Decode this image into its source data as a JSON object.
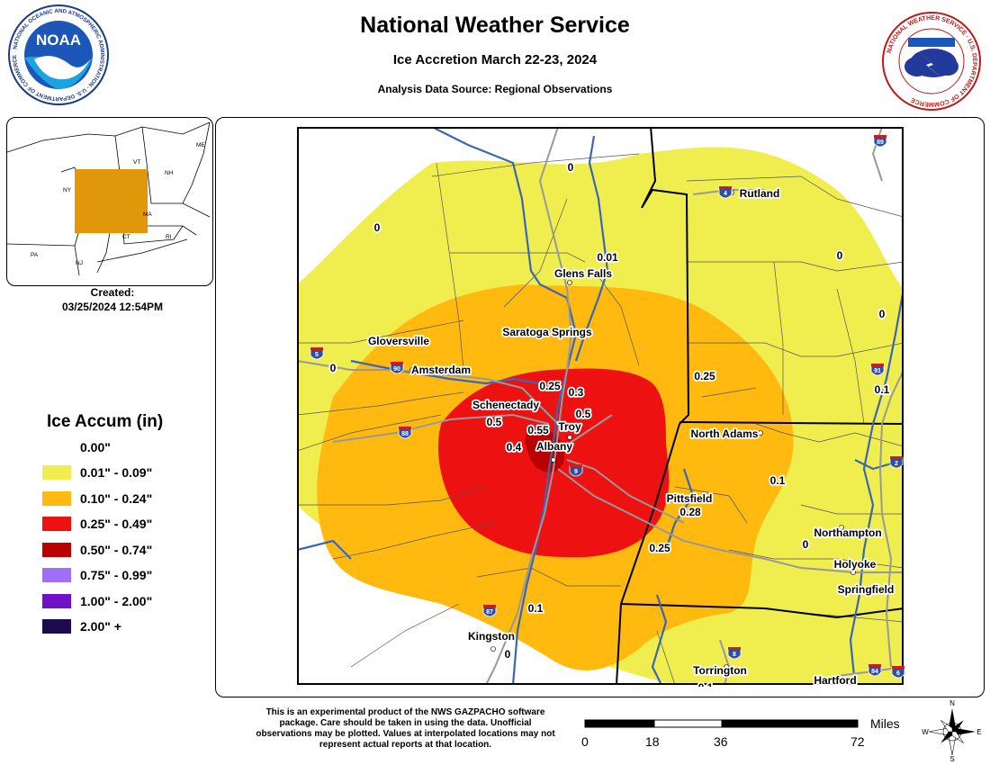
{
  "header": {
    "title": "National Weather Service",
    "subtitle": "Ice Accretion March 22-23, 2024",
    "source": "Analysis Data Source: Regional Observations"
  },
  "logos": {
    "noaa": {
      "text": "NOAA",
      "ring": "NATIONAL OCEANIC AND ATMOSPHERIC ADMINISTRATION · U.S. DEPARTMENT OF COMMERCE"
    },
    "nws": {
      "ring": "NATIONAL WEATHER SERVICE · U.S. DEPARTMENT OF COMMERCE"
    }
  },
  "inset": {
    "state_labels": [
      "ME",
      "VT",
      "NH",
      "NY",
      "MA",
      "CT",
      "RI",
      "PA",
      "NJ"
    ],
    "highlight_color": "#E0980A"
  },
  "created": {
    "label": "Created:",
    "timestamp": "03/25/2024 12:54PM"
  },
  "legend": {
    "title": "Ice Accum (in)",
    "items": [
      {
        "label": "0.00\"",
        "color": "#FFFFFF"
      },
      {
        "label": "0.01\" - 0.09\"",
        "color": "#F0EE4E"
      },
      {
        "label": "0.10\" - 0.24\"",
        "color": "#FFB90F"
      },
      {
        "label": "0.25\" - 0.49\"",
        "color": "#EE1111"
      },
      {
        "label": "0.50\" - 0.74\"",
        "color": "#BB0000"
      },
      {
        "label": "0.75\" - 0.99\"",
        "color": "#9F6FF5"
      },
      {
        "label": "1.00\" - 2.00\"",
        "color": "#7010C8"
      },
      {
        "label": "2.00\" +",
        "color": "#1E0A50"
      }
    ]
  },
  "map": {
    "cities": [
      {
        "name": "Glens Falls"
      },
      {
        "name": "Rutland"
      },
      {
        "name": "Saratoga Springs"
      },
      {
        "name": "Gloversville"
      },
      {
        "name": "Amsterdam"
      },
      {
        "name": "Schenectady"
      },
      {
        "name": "Troy"
      },
      {
        "name": "Albany"
      },
      {
        "name": "North Adams"
      },
      {
        "name": "Pittsfield"
      },
      {
        "name": "Northampton"
      },
      {
        "name": "Holyoke"
      },
      {
        "name": "Springfield"
      },
      {
        "name": "Kingston"
      },
      {
        "name": "Torrington"
      },
      {
        "name": "Hartford"
      }
    ],
    "observations": [
      "0",
      "0",
      "0.01",
      "0",
      "0",
      "0",
      "0.25",
      "0.25",
      "0.3",
      "0.5",
      "0.5",
      "0.55",
      "0.4",
      "0.1",
      "0.28",
      "0.1",
      "0.25",
      "0",
      "0.1",
      "0",
      "0.1"
    ],
    "highways": [
      "89",
      "4",
      "5",
      "90",
      "91",
      "88",
      "9",
      "2",
      "87",
      "8",
      "84",
      "6"
    ]
  },
  "disclaimer": "This is an experimental product of the NWS GAZPACHO software package. Care should be taken in using the data. Unofficial observations may be plotted. Values at interpolated locations may not represent actual reports at that location.",
  "scalebar": {
    "unit": "Miles",
    "ticks": [
      "0",
      "18",
      "36",
      "72"
    ]
  },
  "compass": {
    "n": "N",
    "s": "S",
    "e": "E",
    "w": "W"
  }
}
